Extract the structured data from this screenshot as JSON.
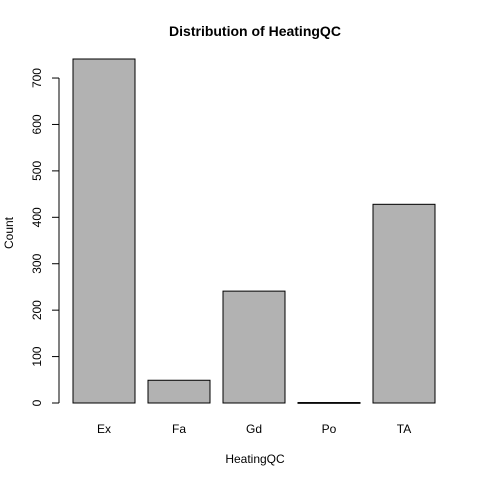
{
  "chart_data": {
    "type": "bar",
    "title": "Distribution of HeatingQC",
    "xlabel": "HeatingQC",
    "ylabel": "Count",
    "categories": [
      "Ex",
      "Fa",
      "Gd",
      "Po",
      "TA"
    ],
    "values": [
      741,
      49,
      241,
      1,
      428
    ],
    "ylim": [
      0,
      741
    ],
    "yticks": [
      0,
      100,
      200,
      300,
      400,
      500,
      600,
      700
    ],
    "bar_color": "#b2b2b2",
    "grid": false,
    "legend": "none"
  }
}
